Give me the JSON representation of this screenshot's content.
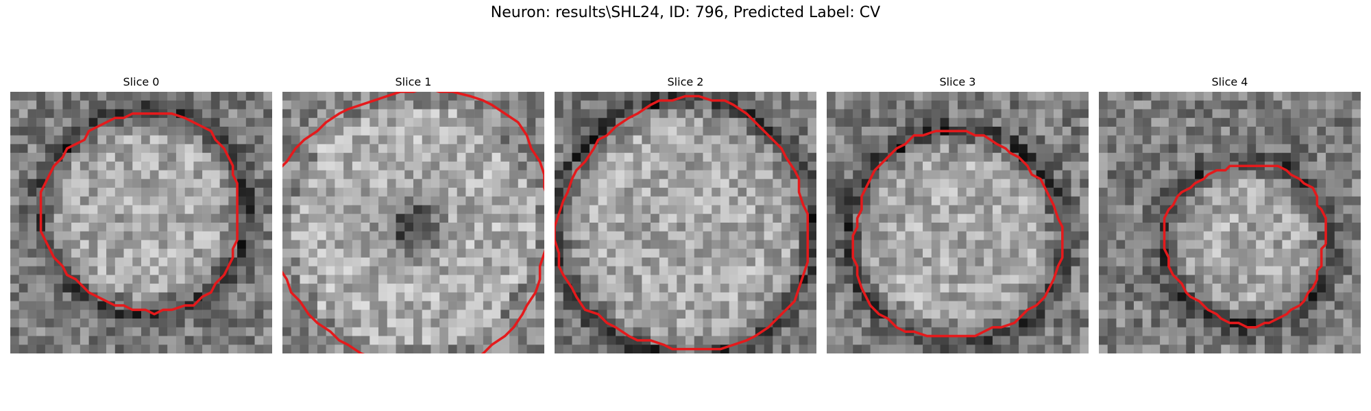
{
  "figure": {
    "title": "Neuron: results\\SHL24, ID: 796, Predicted Label: CV"
  },
  "panels": [
    {
      "title": "Slice 0",
      "contour_color": "#e41a1c",
      "center_tone": "bright",
      "ring_tone": "dark"
    },
    {
      "title": "Slice 1",
      "contour_color": "#e41a1c",
      "center_tone": "dark",
      "ring_tone": "bright"
    },
    {
      "title": "Slice 2",
      "contour_color": "#e41a1c",
      "center_tone": "bright",
      "ring_tone": "dark"
    },
    {
      "title": "Slice 3",
      "contour_color": "#e41a1c",
      "center_tone": "bright",
      "ring_tone": "dark"
    },
    {
      "title": "Slice 4",
      "contour_color": "#e41a1c",
      "center_tone": "bright",
      "ring_tone": "dark"
    }
  ],
  "colormap": "gray"
}
